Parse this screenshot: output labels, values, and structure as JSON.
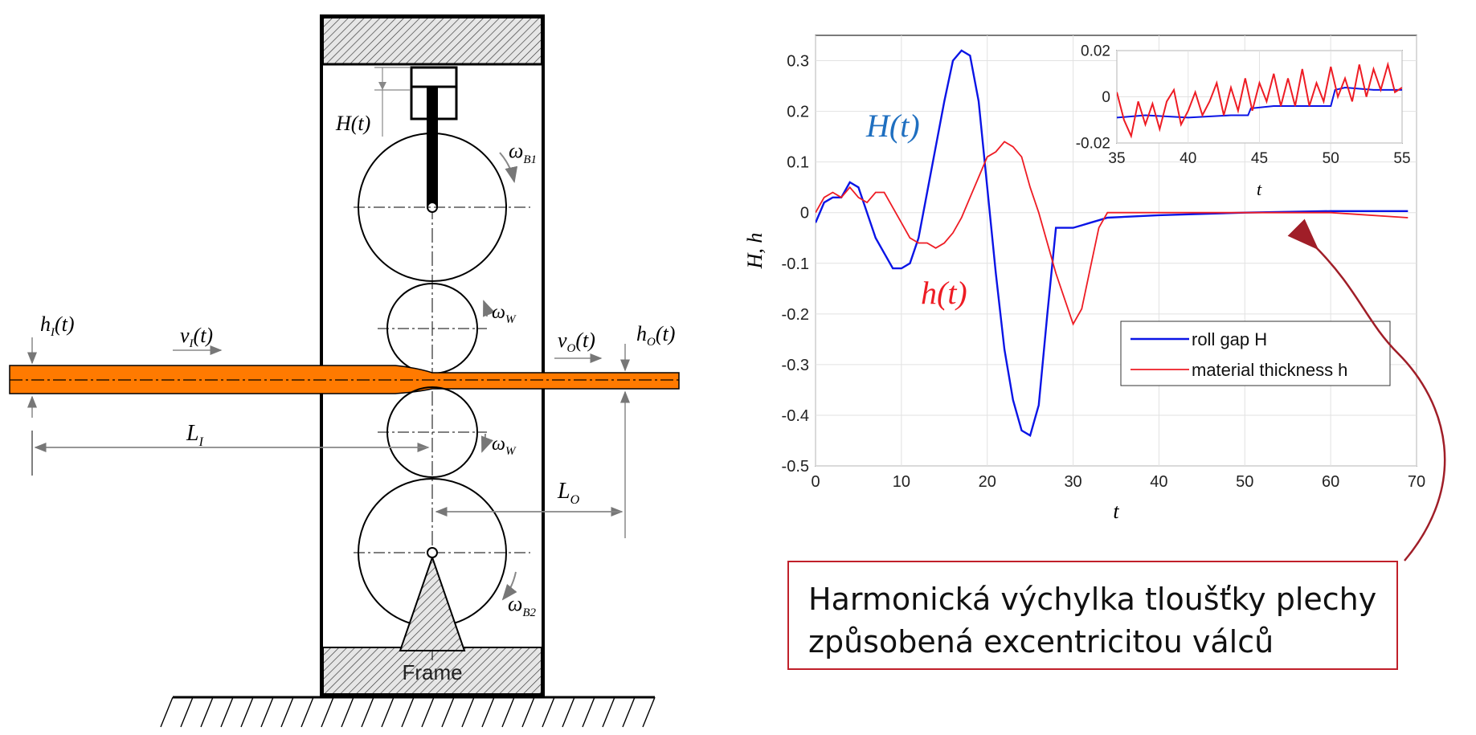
{
  "mill": {
    "labels": {
      "H": "H(t)",
      "hI": "h",
      "hI_sub": "I",
      "hI_tail": "(t)",
      "vI": "v",
      "vI_sub": "I",
      "vI_tail": "(t)",
      "vO": "v",
      "vO_sub": "O",
      "vO_tail": "(t)",
      "hO": "h",
      "hO_sub": "O",
      "hO_tail": "(t)",
      "LI": "L",
      "LI_sub": "I",
      "LO": "L",
      "LO_sub": "O",
      "wB1": "ω",
      "wB1_sub": "B1",
      "wW": "ω",
      "wW_sub": "W",
      "wB2": "ω",
      "wB2_sub": "B2",
      "frame": "Frame"
    },
    "colors": {
      "strip": "#ff7a00",
      "frame": "#000000"
    }
  },
  "chart_data": [
    {
      "type": "line",
      "xlabel": "t",
      "ylabel": "H, h",
      "xlim": [
        0,
        70
      ],
      "ylim": [
        -0.5,
        0.35
      ],
      "xticks": [
        "0",
        "10",
        "20",
        "30",
        "40",
        "50",
        "60",
        "70"
      ],
      "yticks": [
        "0.3",
        "0.2",
        "0.1",
        "0",
        "-0.1",
        "-0.2",
        "-0.3",
        "-0.4",
        "-0.5"
      ],
      "annotations": {
        "H": "H(t)",
        "h": "h(t)"
      },
      "grid": true,
      "legend_position": "lower-right",
      "series": [
        {
          "name": "roll gap H",
          "color": "#0a14e6",
          "x": [
            0,
            1,
            2,
            3,
            4,
            5,
            6,
            7,
            8,
            9,
            10,
            11,
            12,
            13,
            14,
            15,
            16,
            17,
            18,
            19,
            20,
            21,
            22,
            23,
            24,
            25,
            26,
            27,
            28,
            29,
            30,
            31,
            32,
            33,
            34,
            40,
            50,
            60,
            69
          ],
          "y": [
            -0.02,
            0.02,
            0.03,
            0.03,
            0.06,
            0.05,
            0.0,
            -0.05,
            -0.08,
            -0.11,
            -0.11,
            -0.1,
            -0.05,
            0.04,
            0.13,
            0.22,
            0.3,
            0.32,
            0.31,
            0.22,
            0.05,
            -0.12,
            -0.27,
            -0.37,
            -0.43,
            -0.44,
            -0.38,
            -0.2,
            -0.03,
            -0.03,
            -0.03,
            -0.025,
            -0.02,
            -0.015,
            -0.01,
            -0.005,
            0.0,
            0.003,
            0.003
          ]
        },
        {
          "name": "material thickness h",
          "color": "#ee1c24",
          "x": [
            0,
            1,
            2,
            3,
            4,
            5,
            6,
            7,
            8,
            9,
            10,
            11,
            12,
            13,
            14,
            15,
            16,
            17,
            18,
            19,
            20,
            21,
            22,
            23,
            24,
            25,
            26,
            27,
            28,
            29,
            30,
            31,
            32,
            33,
            34,
            40,
            50,
            60,
            69
          ],
          "y": [
            0.0,
            0.03,
            0.04,
            0.03,
            0.05,
            0.03,
            0.02,
            0.04,
            0.04,
            0.01,
            -0.02,
            -0.05,
            -0.06,
            -0.06,
            -0.07,
            -0.06,
            -0.04,
            -0.01,
            0.03,
            0.07,
            0.11,
            0.12,
            0.14,
            0.13,
            0.11,
            0.05,
            0.0,
            -0.06,
            -0.12,
            -0.17,
            -0.22,
            -0.19,
            -0.11,
            -0.03,
            0.0,
            0.0,
            0.0,
            0.0,
            -0.01
          ]
        }
      ]
    },
    {
      "type": "line",
      "xlabel": "t",
      "xlim": [
        35,
        55
      ],
      "ylim": [
        -0.02,
        0.02
      ],
      "xticks": [
        "35",
        "40",
        "45",
        "50",
        "55"
      ],
      "yticks": [
        "0.02",
        "0",
        "-0.02"
      ],
      "series": [
        {
          "color": "#0a14e6",
          "x": [
            35,
            37,
            40,
            43,
            44.2,
            44.4,
            46,
            48,
            50,
            50.3,
            51,
            53,
            55
          ],
          "y": [
            -0.009,
            -0.008,
            -0.009,
            -0.008,
            -0.008,
            -0.005,
            -0.004,
            -0.004,
            -0.004,
            0.003,
            0.004,
            0.003,
            0.003
          ]
        },
        {
          "color": "#ee1c24",
          "x": [
            35,
            35.5,
            36,
            36.5,
            37,
            37.5,
            38,
            38.5,
            39,
            39.5,
            40,
            40.5,
            41,
            41.5,
            42,
            42.5,
            43,
            43.5,
            44,
            44.5,
            45,
            45.5,
            46,
            46.5,
            47,
            47.5,
            48,
            48.5,
            49,
            49.5,
            50,
            50.5,
            51,
            51.5,
            52,
            52.5,
            53,
            53.5,
            54,
            54.5,
            55
          ],
          "y": [
            0.002,
            -0.01,
            -0.017,
            -0.002,
            -0.012,
            -0.003,
            -0.014,
            -0.002,
            0.003,
            -0.012,
            -0.006,
            0.002,
            -0.008,
            -0.002,
            0.006,
            -0.008,
            0.004,
            -0.006,
            0.008,
            -0.006,
            0.006,
            -0.002,
            0.01,
            -0.004,
            0.008,
            -0.004,
            0.012,
            -0.004,
            0.006,
            -0.002,
            0.013,
            0.0,
            0.008,
            -0.002,
            0.014,
            0.0,
            0.012,
            0.003,
            0.014,
            0.002,
            0.004
          ]
        }
      ]
    }
  ],
  "legend": {
    "items": [
      "roll gap H",
      "material thickness h"
    ]
  },
  "callout": {
    "line1": "Harmonická výchylka tloušťky plechy",
    "line2": "způsobená excentricitou válců",
    "border_color": "#c0202a",
    "arrow_color": "#a01e28"
  }
}
